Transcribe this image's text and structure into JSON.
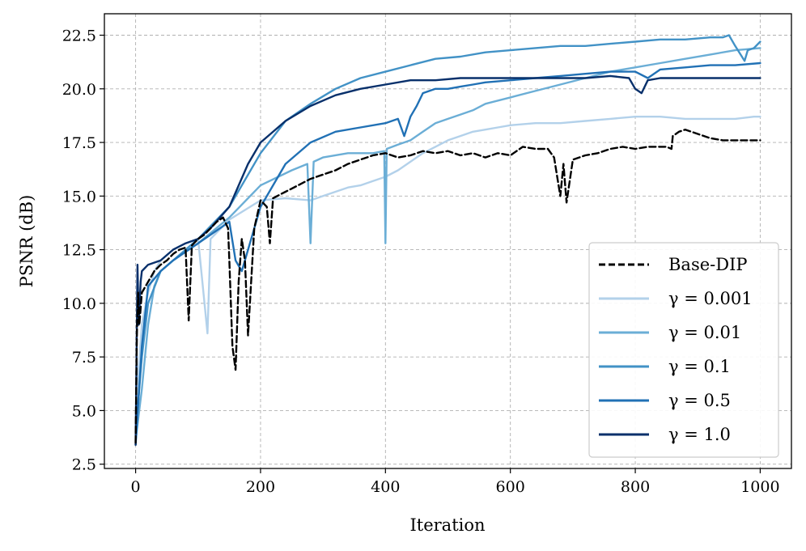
{
  "chart_data": {
    "type": "line",
    "xlabel": "Iteration",
    "ylabel": "PSNR (dB)",
    "xlim": [
      -50,
      1050
    ],
    "ylim": [
      2.3,
      23.5
    ],
    "xticks": [
      0,
      200,
      400,
      600,
      800,
      1000
    ],
    "yticks": [
      2.5,
      5.0,
      7.5,
      10.0,
      12.5,
      15.0,
      17.5,
      20.0,
      22.5
    ],
    "tick_format": {
      "x_decimals": 0,
      "y_decimals": 1
    },
    "grid": true,
    "legend_position": "lower-right",
    "series": [
      {
        "name": "Base-DIP",
        "color": "#000000",
        "dash": "dashed",
        "x": [
          0,
          2,
          4,
          6,
          10,
          20,
          30,
          40,
          50,
          60,
          70,
          80,
          85,
          90,
          100,
          110,
          120,
          130,
          140,
          148,
          150,
          155,
          160,
          165,
          170,
          175,
          180,
          190,
          200,
          210,
          215,
          220,
          240,
          260,
          280,
          300,
          320,
          340,
          360,
          380,
          400,
          420,
          440,
          460,
          480,
          500,
          520,
          540,
          560,
          580,
          600,
          620,
          640,
          660,
          670,
          680,
          685,
          690,
          700,
          720,
          740,
          760,
          780,
          800,
          820,
          850,
          858,
          860,
          870,
          880,
          900,
          920,
          940,
          960,
          980,
          1000
        ],
        "y": [
          3.5,
          8.5,
          10.5,
          9.0,
          10.5,
          11.0,
          11.5,
          11.8,
          12.0,
          12.3,
          12.5,
          12.6,
          9.2,
          12.7,
          13.0,
          13.2,
          13.5,
          13.8,
          14.0,
          13.5,
          12.0,
          8.0,
          6.9,
          11.0,
          13.0,
          12.0,
          8.5,
          13.5,
          14.8,
          14.5,
          12.8,
          14.9,
          15.2,
          15.5,
          15.8,
          16.0,
          16.2,
          16.5,
          16.7,
          16.9,
          17.0,
          16.8,
          16.9,
          17.1,
          17.0,
          17.1,
          16.9,
          17.0,
          16.8,
          17.0,
          16.9,
          17.3,
          17.2,
          17.2,
          16.8,
          15.0,
          16.5,
          14.7,
          16.7,
          16.9,
          17.0,
          17.2,
          17.3,
          17.2,
          17.3,
          17.3,
          17.2,
          17.8,
          18.0,
          18.1,
          17.9,
          17.7,
          17.6,
          17.6,
          17.6,
          17.6
        ]
      },
      {
        "name": "γ = 0.001",
        "color": "#b3d1ea",
        "x": [
          0,
          5,
          10,
          20,
          30,
          40,
          60,
          80,
          100,
          115,
          120,
          150,
          200,
          240,
          280,
          300,
          320,
          340,
          360,
          380,
          400,
          420,
          440,
          460,
          480,
          500,
          520,
          540,
          560,
          580,
          600,
          640,
          680,
          720,
          760,
          800,
          840,
          880,
          920,
          960,
          990,
          1000
        ],
        "y": [
          3.8,
          7.0,
          9.0,
          10.5,
          11.5,
          12.0,
          12.5,
          12.8,
          13.0,
          8.6,
          13.0,
          13.9,
          14.8,
          14.9,
          14.8,
          15.0,
          15.2,
          15.4,
          15.5,
          15.7,
          15.9,
          16.2,
          16.6,
          17.0,
          17.3,
          17.6,
          17.8,
          18.0,
          18.1,
          18.2,
          18.3,
          18.4,
          18.4,
          18.5,
          18.6,
          18.7,
          18.7,
          18.6,
          18.6,
          18.6,
          18.7,
          18.7
        ]
      },
      {
        "name": "γ = 0.01",
        "color": "#6baed6",
        "x": [
          0,
          10,
          20,
          30,
          40,
          60,
          80,
          100,
          150,
          200,
          250,
          275,
          280,
          285,
          300,
          340,
          380,
          398,
          400,
          402,
          420,
          440,
          460,
          480,
          500,
          520,
          540,
          560,
          600,
          640,
          680,
          720,
          760,
          800,
          840,
          880,
          920,
          960,
          1000
        ],
        "y": [
          3.6,
          6.0,
          9.0,
          10.8,
          11.5,
          12.0,
          12.4,
          12.8,
          14.0,
          15.5,
          16.2,
          16.5,
          12.8,
          16.6,
          16.8,
          17.0,
          17.0,
          17.1,
          12.8,
          17.2,
          17.4,
          17.6,
          18.0,
          18.4,
          18.6,
          18.8,
          19.0,
          19.3,
          19.6,
          19.9,
          20.2,
          20.5,
          20.8,
          21.0,
          21.2,
          21.4,
          21.6,
          21.8,
          21.9
        ]
      },
      {
        "name": "γ = 0.1",
        "color": "#4292c6",
        "x": [
          0,
          10,
          20,
          40,
          60,
          80,
          100,
          150,
          200,
          240,
          280,
          320,
          360,
          400,
          440,
          480,
          520,
          560,
          600,
          640,
          680,
          720,
          760,
          800,
          840,
          880,
          920,
          940,
          950,
          960,
          975,
          980,
          990,
          1000
        ],
        "y": [
          4.0,
          7.5,
          10.0,
          11.5,
          12.0,
          12.5,
          13.0,
          14.5,
          17.0,
          18.5,
          19.3,
          20.0,
          20.5,
          20.8,
          21.1,
          21.4,
          21.5,
          21.7,
          21.8,
          21.9,
          22.0,
          22.0,
          22.1,
          22.2,
          22.3,
          22.3,
          22.4,
          22.4,
          22.5,
          22.0,
          21.3,
          21.8,
          21.9,
          22.2
        ]
      },
      {
        "name": "γ = 0.5",
        "color": "#2171b5",
        "x": [
          0,
          10,
          20,
          40,
          60,
          80,
          100,
          150,
          160,
          170,
          200,
          240,
          280,
          320,
          360,
          400,
          420,
          430,
          440,
          450,
          460,
          480,
          500,
          520,
          540,
          560,
          600,
          640,
          680,
          720,
          760,
          800,
          820,
          840,
          880,
          920,
          960,
          1000
        ],
        "y": [
          3.4,
          8.0,
          10.8,
          11.5,
          12.0,
          12.4,
          12.8,
          13.8,
          12.0,
          11.5,
          14.5,
          16.5,
          17.5,
          18.0,
          18.2,
          18.4,
          18.6,
          17.8,
          18.7,
          19.2,
          19.8,
          20.0,
          20.0,
          20.1,
          20.2,
          20.3,
          20.4,
          20.5,
          20.6,
          20.7,
          20.8,
          20.8,
          20.5,
          20.9,
          21.0,
          21.1,
          21.1,
          21.2
        ]
      },
      {
        "name": "γ = 1.0",
        "color": "#08306b",
        "x": [
          0,
          3,
          5,
          8,
          10,
          20,
          40,
          60,
          80,
          100,
          120,
          150,
          180,
          200,
          240,
          280,
          320,
          360,
          400,
          440,
          480,
          520,
          560,
          600,
          640,
          680,
          720,
          760,
          790,
          800,
          810,
          820,
          840,
          880,
          920,
          960,
          1000
        ],
        "y": [
          3.4,
          11.8,
          9.0,
          11.0,
          11.5,
          11.8,
          12.0,
          12.5,
          12.8,
          13.0,
          13.5,
          14.5,
          16.5,
          17.5,
          18.5,
          19.2,
          19.7,
          20.0,
          20.2,
          20.4,
          20.4,
          20.5,
          20.5,
          20.5,
          20.5,
          20.5,
          20.5,
          20.6,
          20.5,
          20.0,
          19.8,
          20.4,
          20.5,
          20.5,
          20.5,
          20.5,
          20.5
        ]
      }
    ]
  }
}
